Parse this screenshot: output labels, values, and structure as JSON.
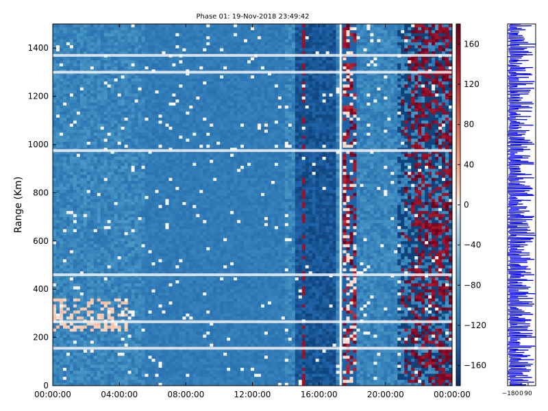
{
  "chart_data": [
    {
      "type": "heatmap",
      "title": "Phase 01: 19-Nov-2018 23:49:42",
      "xlabel": "",
      "ylabel": "Range (Km)",
      "xlim": [
        "00:00:00",
        "00:00:00"
      ],
      "ylim": [
        0,
        1500
      ],
      "x_ticks": [
        "00:00:00",
        "04:00:00",
        "08:00:00",
        "12:00:00",
        "16:00:00",
        "20:00:00",
        "00:00:00"
      ],
      "y_ticks": [
        0,
        200,
        400,
        600,
        800,
        1000,
        1200,
        1400
      ],
      "colorbar": {
        "range": [
          -180,
          180
        ],
        "ticks": [
          160,
          120,
          80,
          40,
          0,
          -40,
          -80,
          -120,
          -160
        ],
        "colormap": "RdBu_r"
      },
      "features": {
        "white_vertical_gap_hours": 17.3,
        "noisy_vertical_band_hours": [
          17.5,
          18.2
        ],
        "high_phase_region_start_hours": 20.8,
        "white_horizontal_lines_km": [
          1370,
          1300,
          975,
          460,
          265,
          155
        ]
      }
    },
    {
      "type": "line",
      "title": "",
      "xlabel": "",
      "ylabel": "",
      "x_ticks": [
        -180,
        0,
        90
      ],
      "x_tick_labels": [
        "−180",
        "0",
        "90"
      ],
      "color": "#0000ff"
    }
  ]
}
